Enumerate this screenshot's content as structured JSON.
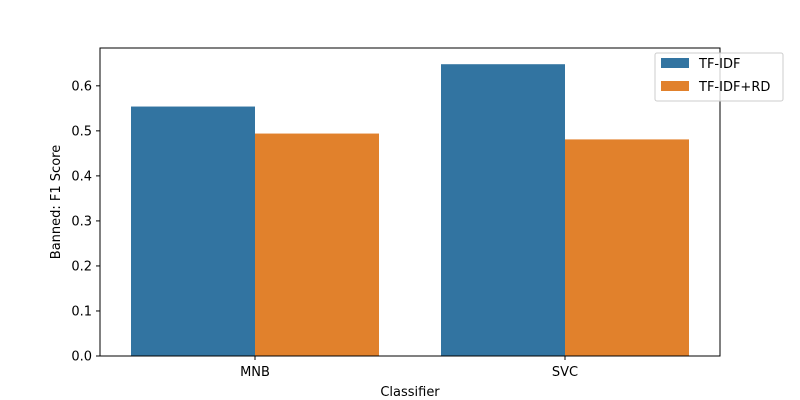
{
  "chart_data": {
    "type": "bar",
    "title": "",
    "xlabel": "Classifier",
    "ylabel": "Banned: F1 Score",
    "categories": [
      "MNB",
      "SVC"
    ],
    "series": [
      {
        "name": "TF-IDF",
        "color": "#3274a1",
        "values": [
          0.554,
          0.648
        ]
      },
      {
        "name": "TF-IDF+RD",
        "color": "#e1812c",
        "values": [
          0.494,
          0.481
        ]
      }
    ],
    "ylim": [
      0,
      0.684
    ],
    "yticks": [
      "0.0",
      "0.1",
      "0.2",
      "0.3",
      "0.4",
      "0.5",
      "0.6"
    ],
    "grid": false,
    "legend": "top-right"
  }
}
